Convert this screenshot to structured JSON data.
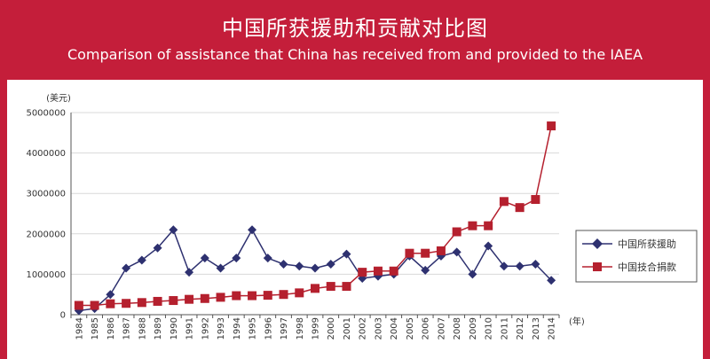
{
  "title": "中国所获援助和贡献对比图",
  "subtitle": "Comparison of assistance that China has received from and provided to the IAEA",
  "colors": {
    "background": "#c41e3a",
    "received": "#2e3170",
    "provided": "#b5202e"
  },
  "chart_data": {
    "type": "line",
    "title": "中国所获援助和贡献对比图",
    "subtitle": "Comparison of assistance that China has received from and provided to the IAEA",
    "ylabel": "(美元)",
    "xlabel": "(年)",
    "ylim": [
      0,
      5000000
    ],
    "yticks": [
      "5000000",
      "4000000",
      "3000000",
      "2000000",
      "1000000",
      "0"
    ],
    "grid": "horizontal",
    "legend_position": "right",
    "categories": [
      "1984",
      "1985",
      "1986",
      "1987",
      "1988",
      "1989",
      "1990",
      "1991",
      "1992",
      "1993",
      "1994",
      "1995",
      "1996",
      "1997",
      "1998",
      "1999",
      "2000",
      "2001",
      "2002",
      "2003",
      "2004",
      "2005",
      "2006",
      "2007",
      "2008",
      "2009",
      "2010",
      "2011",
      "2012",
      "2013",
      "2014"
    ],
    "series": [
      {
        "name": "中国所获援助",
        "marker": "diamond",
        "color": "#2e3170",
        "values": [
          100000,
          150000,
          500000,
          1150000,
          1350000,
          1650000,
          2100000,
          1050000,
          1400000,
          1150000,
          1400000,
          2100000,
          1400000,
          1250000,
          1200000,
          1150000,
          1250000,
          1500000,
          900000,
          950000,
          1000000,
          1450000,
          1100000,
          1450000,
          1550000,
          1000000,
          1700000,
          1200000,
          1200000,
          1250000,
          850000
        ]
      },
      {
        "name": "中国技合捐款",
        "marker": "square",
        "color": "#b5202e",
        "values": [
          230000,
          230000,
          270000,
          280000,
          300000,
          330000,
          350000,
          380000,
          400000,
          430000,
          470000,
          470000,
          480000,
          500000,
          540000,
          650000,
          700000,
          700000,
          1050000,
          1080000,
          1080000,
          1520000,
          1520000,
          1580000,
          2050000,
          2200000,
          2200000,
          2800000,
          2650000,
          2850000,
          4670000
        ]
      }
    ]
  }
}
